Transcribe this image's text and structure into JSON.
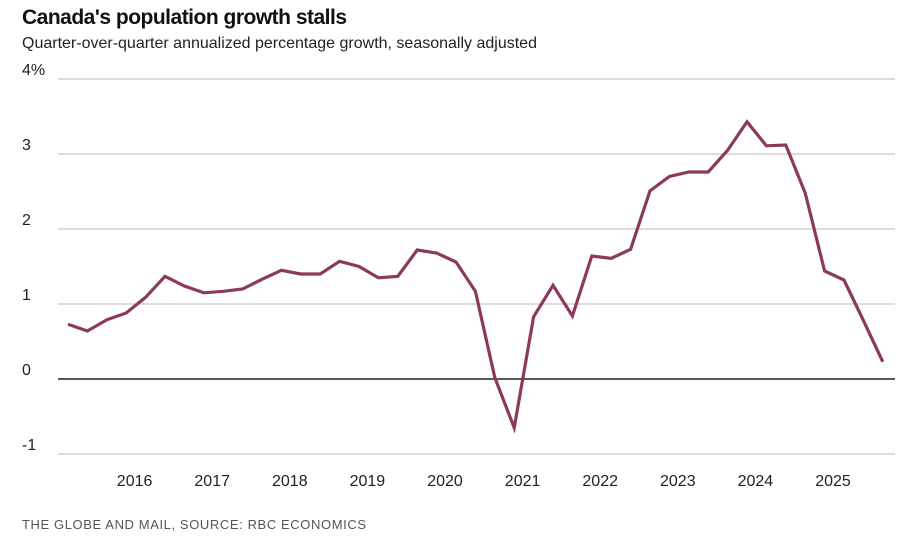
{
  "chart_data": {
    "type": "line",
    "title": "Canada's population growth stalls",
    "subtitle": "Quarter-over-quarter annualized percentage growth, seasonally adjusted",
    "source": "THE GLOBE AND MAIL, SOURCE: RBC ECONOMICS",
    "xlabel": "",
    "ylabel": "",
    "ylim": [
      -1,
      4
    ],
    "yticks": [
      {
        "v": 4,
        "label": "4%"
      },
      {
        "v": 3,
        "label": "3"
      },
      {
        "v": 2,
        "label": "2"
      },
      {
        "v": 1,
        "label": "1"
      },
      {
        "v": 0,
        "label": "0"
      },
      {
        "v": -1,
        "label": "-1"
      }
    ],
    "xticks": [
      "2016",
      "2017",
      "2018",
      "2019",
      "2020",
      "2021",
      "2022",
      "2023",
      "2024",
      "2025"
    ],
    "grid": true,
    "line_color": "#8b3a5e",
    "series": [
      {
        "name": "Population growth",
        "start": "2015 Q1",
        "frequency": "quarterly",
        "values": [
          0.73,
          0.64,
          0.79,
          0.88,
          1.09,
          1.37,
          1.24,
          1.15,
          1.17,
          1.2,
          1.33,
          1.45,
          1.4,
          1.4,
          1.57,
          1.5,
          1.35,
          1.37,
          1.72,
          1.68,
          1.56,
          1.17,
          0.02,
          -0.65,
          0.83,
          1.25,
          0.84,
          1.64,
          1.61,
          1.73,
          2.51,
          2.7,
          2.76,
          2.76,
          3.05,
          3.43,
          3.11,
          3.12,
          2.48,
          1.44,
          1.32,
          0.78,
          0.23
        ]
      }
    ]
  }
}
